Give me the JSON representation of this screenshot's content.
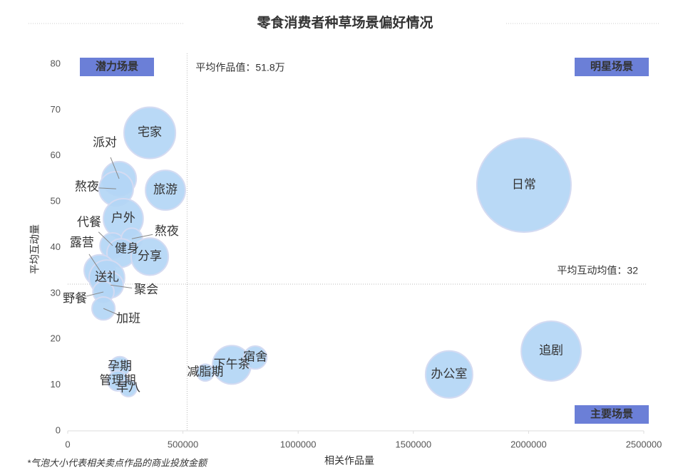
{
  "chart_data": {
    "type": "bubble",
    "title": "零食消费者种草场景偏好情况",
    "xlabel": "相关作品量",
    "ylabel": "平均互动量",
    "footnote": "*气泡大小代表相关卖点作品的商业投放金额",
    "quadrants": {
      "top_left": "潜力场景",
      "top_right": "明星场景",
      "bottom_right": "主要场景"
    },
    "x_avg": 518000,
    "x_avg_label": "平均作品值：51.8万",
    "y_avg": 32,
    "y_avg_label": "平均互动均值：32",
    "color": "#b3d6f5",
    "xlim": [
      0,
      2500000
    ],
    "xticks": [
      0,
      500000,
      1000000,
      1500000,
      2000000,
      2500000
    ],
    "ylim": [
      0,
      80
    ],
    "yticks": [
      0,
      10,
      20,
      30,
      40,
      50,
      60,
      70,
      80
    ],
    "points": [
      {
        "label": "宅家",
        "x": 356000,
        "y": 65,
        "size": 130
      },
      {
        "label": "派对",
        "x": 223000,
        "y": 55,
        "size": 58
      },
      {
        "label": "熬夜",
        "x": 210000,
        "y": 52.8,
        "size": 58
      },
      {
        "label": "旅游",
        "x": 424000,
        "y": 52.5,
        "size": 78
      },
      {
        "label": "户外",
        "x": 241000,
        "y": 46.3,
        "size": 78
      },
      {
        "label": "代餐",
        "x": 195000,
        "y": 40.4,
        "size": 32
      },
      {
        "label": "熬夜",
        "x": 278000,
        "y": 41.9,
        "size": 22
      },
      {
        "label": "健身",
        "x": 232000,
        "y": 38.8,
        "size": 40
      },
      {
        "label": "分享",
        "x": 356000,
        "y": 38,
        "size": 68
      },
      {
        "label": "露营",
        "x": 139000,
        "y": 35,
        "size": 48
      },
      {
        "label": "送礼",
        "x": 170000,
        "y": 33.4,
        "size": 62
      },
      {
        "label": "聚会",
        "x": 186000,
        "y": 31.8,
        "size": 32
      },
      {
        "label": "野餐",
        "x": 155000,
        "y": 30.3,
        "size": 22
      },
      {
        "label": "加班",
        "x": 155000,
        "y": 26.7,
        "size": 26
      },
      {
        "label": "孕期",
        "x": 226000,
        "y": 14,
        "size": 20
      },
      {
        "label": "管理期",
        "x": 217000,
        "y": 10.9,
        "size": 20
      },
      {
        "label": "早八",
        "x": 263000,
        "y": 9.3,
        "size": 14
      },
      {
        "label": "减脂期",
        "x": 597000,
        "y": 12.7,
        "size": 14
      },
      {
        "label": "下午茶",
        "x": 712000,
        "y": 14.4,
        "size": 73
      },
      {
        "label": "宿舍",
        "x": 814000,
        "y": 16,
        "size": 26
      },
      {
        "label": "办公室",
        "x": 1655000,
        "y": 12.3,
        "size": 109
      },
      {
        "label": "日常",
        "x": 1980000,
        "y": 53.6,
        "size": 436
      },
      {
        "label": "追剧",
        "x": 2098000,
        "y": 17.4,
        "size": 176
      }
    ]
  }
}
